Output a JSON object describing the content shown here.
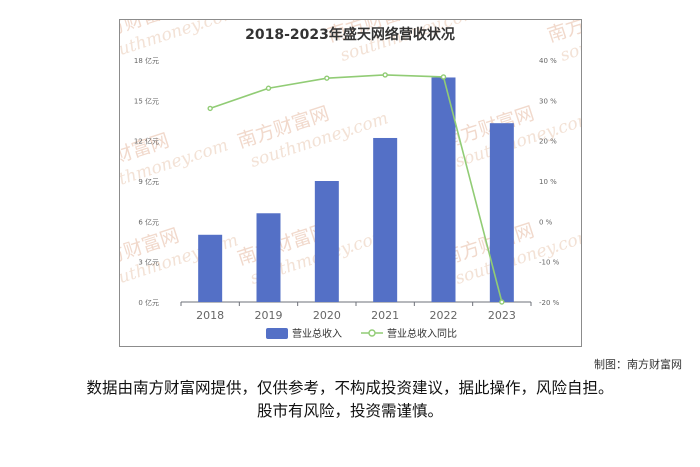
{
  "chart_data": {
    "type": "bar",
    "title": "2018-2023年盛天网络营收状况",
    "categories": [
      "2018",
      "2019",
      "2020",
      "2021",
      "2022",
      "2023"
    ],
    "series": [
      {
        "name": "营业总收入",
        "type": "bar",
        "axis": "left",
        "values": [
          5.0,
          6.6,
          9.0,
          12.2,
          16.7,
          13.3
        ]
      },
      {
        "name": "营业总收入同比",
        "type": "line",
        "axis": "right",
        "values": [
          28,
          33,
          35.5,
          36.3,
          35.8,
          -20
        ]
      }
    ],
    "y_left": {
      "ylim": [
        0,
        18
      ],
      "ticks": [
        0,
        3,
        6,
        9,
        12,
        15,
        18
      ],
      "tick_labels": [
        "0 亿元",
        "3 亿元",
        "6 亿元",
        "9 亿元",
        "12 亿元",
        "15 亿元",
        "18 亿元"
      ]
    },
    "y_right": {
      "ylim": [
        -20,
        40
      ],
      "ticks": [
        -20,
        -10,
        0,
        10,
        20,
        30,
        40
      ],
      "tick_labels": [
        "-20 %",
        "-10 %",
        "0 %",
        "10 %",
        "20 %",
        "30 %",
        "40 %"
      ]
    },
    "legend_position": "bottom",
    "grid": false,
    "colors": {
      "bar": "#5470c6",
      "line": "#91cc75"
    }
  },
  "credit": "制图：南方财富网",
  "disclaimer": {
    "line1": "数据由南方财富网提供，仅供参考，不构成投资建议，据此操作，风险自担。",
    "line2": "股市有风险，投资需谨慎。"
  },
  "watermark": {
    "brand": "南方财富网",
    "domain": "southmoney.com"
  }
}
